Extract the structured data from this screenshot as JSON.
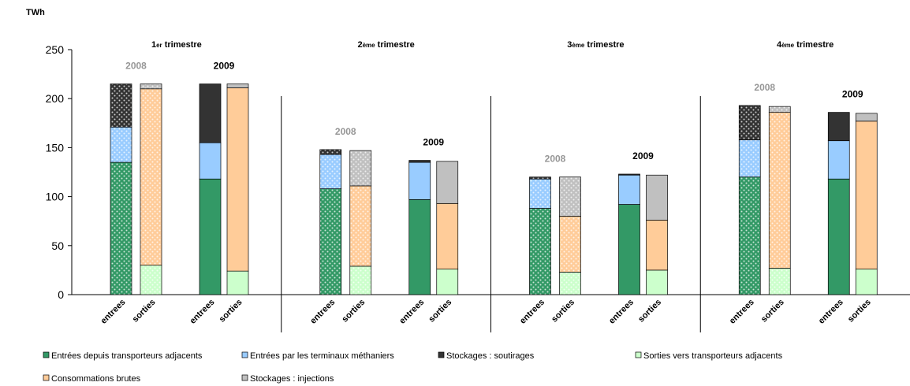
{
  "chart_data": {
    "type": "bar",
    "stacked": true,
    "unit_label": "TWh",
    "ylim": [
      0,
      250
    ],
    "yticks": [
      0,
      50,
      100,
      150,
      200,
      250
    ],
    "grid": false,
    "legend_position": "bottom",
    "category_labels": [
      "entrees",
      "sorties"
    ],
    "series": [
      {
        "key": "ent_adj",
        "name": "Entrées depuis transporteurs adjacents",
        "group": "entrees",
        "color": "#339966"
      },
      {
        "key": "ent_gnl",
        "name": "Entrées par les terminaux méthaniers",
        "group": "entrees",
        "color": "#99CCFF"
      },
      {
        "key": "soutir",
        "name": "Stockages : soutirages",
        "group": "entrees",
        "color": "#333333"
      },
      {
        "key": "sort_adj",
        "name": "Sorties vers transporteurs adjacents",
        "group": "sorties",
        "color": "#CCFFCC"
      },
      {
        "key": "conso",
        "name": "Consommations brutes",
        "group": "sorties",
        "color": "#FFCC99"
      },
      {
        "key": "inject",
        "name": "Stockages : injections",
        "group": "sorties",
        "color": "#C0C0C0"
      }
    ],
    "quarters": [
      {
        "title_num": "1",
        "title_sup": "er",
        "title_rest": " trimestre",
        "years": [
          {
            "year": "2008",
            "pattern": true,
            "color": "#969696",
            "entrees": {
              "ent_adj": 135,
              "ent_gnl": 36,
              "soutir": 44
            },
            "sorties": {
              "sort_adj": 30,
              "conso": 180,
              "inject": 5
            }
          },
          {
            "year": "2009",
            "pattern": false,
            "color": "#000000",
            "entrees": {
              "ent_adj": 118,
              "ent_gnl": 37,
              "soutir": 60
            },
            "sorties": {
              "sort_adj": 24,
              "conso": 187,
              "inject": 4
            }
          }
        ]
      },
      {
        "title_num": "2",
        "title_sup": "ème",
        "title_rest": " trimestre",
        "years": [
          {
            "year": "2008",
            "pattern": true,
            "color": "#969696",
            "entrees": {
              "ent_adj": 108,
              "ent_gnl": 35,
              "soutir": 5
            },
            "sorties": {
              "sort_adj": 29,
              "conso": 82,
              "inject": 36
            }
          },
          {
            "year": "2009",
            "pattern": false,
            "color": "#000000",
            "entrees": {
              "ent_adj": 97,
              "ent_gnl": 38,
              "soutir": 2
            },
            "sorties": {
              "sort_adj": 26,
              "conso": 67,
              "inject": 43
            }
          }
        ]
      },
      {
        "title_num": "3",
        "title_sup": "ème",
        "title_rest": " trimestre",
        "years": [
          {
            "year": "2008",
            "pattern": true,
            "color": "#969696",
            "entrees": {
              "ent_adj": 88,
              "ent_gnl": 30,
              "soutir": 2
            },
            "sorties": {
              "sort_adj": 23,
              "conso": 57,
              "inject": 40
            }
          },
          {
            "year": "2009",
            "pattern": false,
            "color": "#000000",
            "entrees": {
              "ent_adj": 92,
              "ent_gnl": 30,
              "soutir": 1
            },
            "sorties": {
              "sort_adj": 25,
              "conso": 51,
              "inject": 46
            }
          }
        ]
      },
      {
        "title_num": "4",
        "title_sup": "ème",
        "title_rest": " trimestre",
        "years": [
          {
            "year": "2008",
            "pattern": true,
            "color": "#969696",
            "entrees": {
              "ent_adj": 120,
              "ent_gnl": 38,
              "soutir": 35
            },
            "sorties": {
              "sort_adj": 27,
              "conso": 159,
              "inject": 6
            }
          },
          {
            "year": "2009",
            "pattern": false,
            "color": "#000000",
            "entrees": {
              "ent_adj": 118,
              "ent_gnl": 39,
              "soutir": 29
            },
            "sorties": {
              "sort_adj": 26,
              "conso": 151,
              "inject": 8
            }
          }
        ]
      }
    ]
  }
}
